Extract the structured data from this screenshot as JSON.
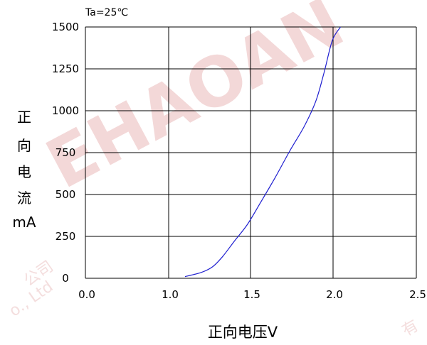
{
  "chart_data": {
    "type": "line",
    "note": "Ta=25℃",
    "xlabel": "正向电压V",
    "ylabel": "正向电流mA",
    "x_ticks": [
      "0.0",
      "1.0",
      "1.5",
      "2.0",
      "2.5"
    ],
    "y_ticks": [
      "0",
      "250",
      "500",
      "750",
      "1000",
      "1250",
      "1500"
    ],
    "xlim": [
      0.0,
      2.5
    ],
    "ylim": [
      0,
      1500
    ],
    "grid": true,
    "series": [
      {
        "color": "#1f1fd0",
        "x": [
          1.1,
          1.2,
          1.27,
          1.33,
          1.4,
          1.48,
          1.56,
          1.65,
          1.74,
          1.83,
          1.9,
          1.95,
          2.0,
          2.05
        ],
        "y": [
          10,
          35,
          70,
          130,
          220,
          320,
          450,
          600,
          760,
          910,
          1060,
          1230,
          1420,
          1500
        ]
      }
    ]
  },
  "watermark": {
    "main": "EHAOAN",
    "left_small": "公司",
    "left_small_2": "o., Ltd",
    "right_small": "有"
  }
}
